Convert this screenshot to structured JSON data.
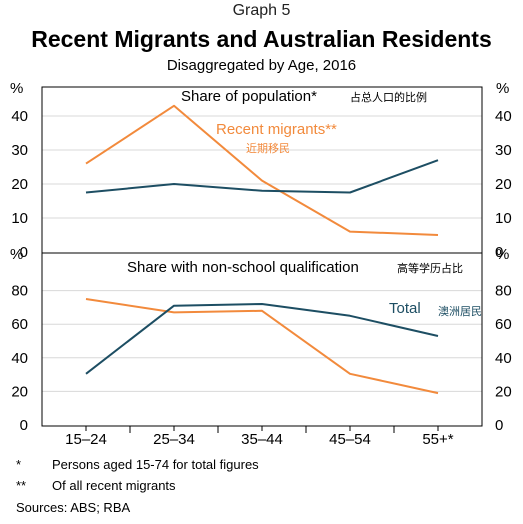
{
  "graph_label": "Graph 5",
  "title": "Recent Migrants and Australian Residents",
  "subtitle": "Disaggregated by Age, 2016",
  "colors": {
    "total": "#1d4e63",
    "migrants": "#f28a3c",
    "axis": "#000000",
    "grid": "#d8d8d8"
  },
  "chart_data": [
    {
      "type": "line",
      "title": "Share of population*",
      "title_note": "占总人口的比例",
      "ylabel": "%",
      "ylim": [
        0,
        50
      ],
      "yticks": [
        0,
        10,
        20,
        30,
        40
      ],
      "categories": [
        "15–24",
        "25–34",
        "35–44",
        "45–54",
        "55+*"
      ],
      "series": [
        {
          "key": "migrants",
          "name": "Recent migrants**",
          "note": "近期移民",
          "values": [
            26,
            43,
            21,
            6,
            5
          ]
        },
        {
          "key": "total",
          "name": "",
          "note": "",
          "values": [
            17.5,
            20,
            18,
            17.5,
            27
          ]
        }
      ]
    },
    {
      "type": "line",
      "title": "Share with non-school qualification",
      "title_note": "高等学历占比",
      "ylabel": "%",
      "ylim": [
        0,
        100
      ],
      "yticks": [
        0,
        20,
        40,
        60,
        80
      ],
      "categories": [
        "15–24",
        "25–34",
        "35–44",
        "45–54",
        "55+*"
      ],
      "series": [
        {
          "key": "migrants",
          "name": "",
          "note": "",
          "values": [
            75,
            67,
            68,
            30.5,
            19
          ]
        },
        {
          "key": "total",
          "name": "Total",
          "note": "澳洲居民",
          "values": [
            30.5,
            71,
            72,
            65,
            53
          ]
        }
      ]
    }
  ],
  "footnotes": [
    {
      "mark": "*",
      "text": "Persons aged 15-74 for total figures"
    },
    {
      "mark": "**",
      "text": "Of all recent migrants"
    }
  ],
  "sources": "Sources:  ABS; RBA"
}
